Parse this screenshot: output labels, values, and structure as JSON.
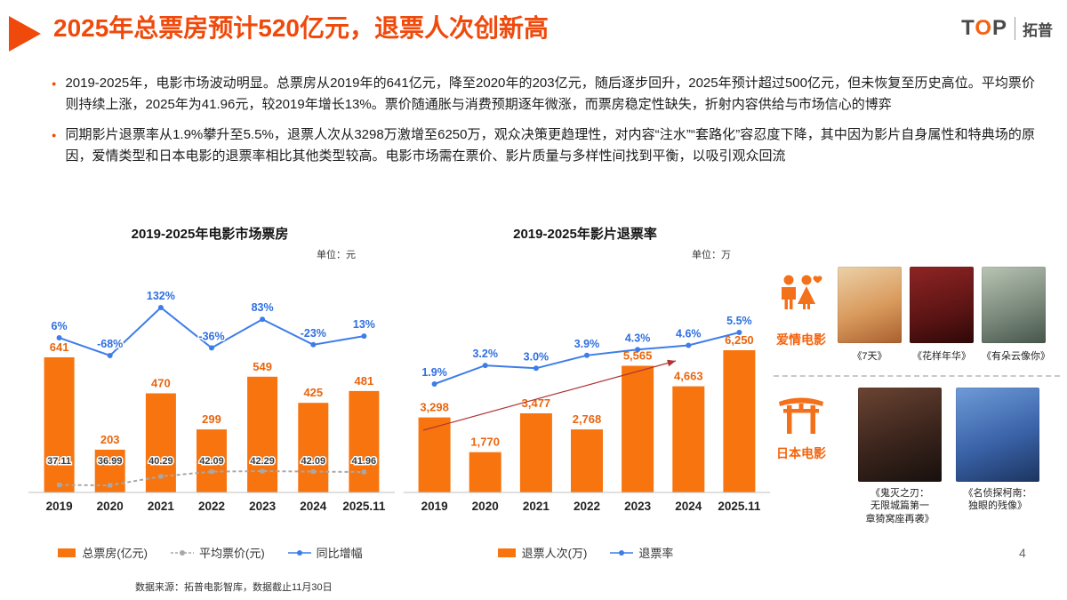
{
  "slide": {
    "title": "2025年总票房预计520亿元，退票人次创新高",
    "logo": {
      "t": "T",
      "o": "O",
      "p": "P",
      "cn": "拓普"
    },
    "page_number": "4",
    "bullets": [
      "2019-2025年，电影市场波动明显。总票房从2019年的641亿元，降至2020年的203亿元，随后逐步回升，2025年预计超过500亿元，但未恢复至历史高位。平均票价则持续上涨，2025年为41.96元，较2019年增长13%。票价随通胀与消费预期逐年微涨，而票房稳定性缺失，折射内容供给与市场信心的博弈",
      "同期影片退票率从1.9%攀升至5.5%，退票人次从3298万激增至6250万，观众决策更趋理性，对内容“注水”“套路化”容忍度下降，其中因为影片自身属性和特典场的原因，爱情类型和日本电影的退票率相比其他类型较高。电影市场需在票价、影片质量与多样性间找到平衡，以吸引观众回流"
    ],
    "footnote": "数据来源：拓普电影智库，数据截止11月30日"
  },
  "chart_data": [
    {
      "type": "bar",
      "title": "2019-2025年电影市场票房",
      "unit": "单位：元",
      "categories": [
        "2019",
        "2020",
        "2021",
        "2022",
        "2023",
        "2024",
        "2025.11"
      ],
      "bar": {
        "name": "总票房(亿元)",
        "color": "#F7740F",
        "values": [
          641,
          203,
          470,
          299,
          549,
          425,
          481
        ],
        "labels": [
          "641",
          "203",
          "470",
          "299",
          "549",
          "425",
          "481"
        ]
      },
      "lines": [
        {
          "name": "平均票价(元)",
          "color": "#A8A8A8",
          "dash": true,
          "values": [
            37.11,
            36.99,
            40.29,
            42.09,
            42.29,
            42.09,
            41.96
          ],
          "labels": [
            "37.11",
            "36.99",
            "40.29",
            "42.09",
            "42.29",
            "42.09",
            "41.96"
          ]
        },
        {
          "name": "同比增幅",
          "color": "#3D7DE8",
          "dash": false,
          "values": [
            6,
            -68,
            132,
            -36,
            83,
            -23,
            13
          ],
          "labels": [
            "6%",
            "-68%",
            "132%",
            "-36%",
            "83%",
            "-23%",
            "13%"
          ]
        }
      ],
      "legend_position": "bottom"
    },
    {
      "type": "bar",
      "title": "2019-2025年影片退票率",
      "unit": "单位：万",
      "categories": [
        "2019",
        "2020",
        "2021",
        "2022",
        "2023",
        "2024",
        "2025.11"
      ],
      "bar": {
        "name": "退票人次(万)",
        "color": "#F7740F",
        "values": [
          3298,
          1770,
          3477,
          2768,
          5565,
          4663,
          6250
        ],
        "labels": [
          "3,298",
          "1,770",
          "3,477",
          "2,768",
          "5,565",
          "4,663",
          "6,250"
        ]
      },
      "lines": [
        {
          "name": "退票率",
          "color": "#3D7DE8",
          "dash": false,
          "values": [
            1.9,
            3.2,
            3.0,
            3.9,
            4.3,
            4.6,
            5.5
          ],
          "labels": [
            "1.9%",
            "3.2%",
            "3.0%",
            "3.9%",
            "4.3%",
            "4.6%",
            "5.5%"
          ]
        }
      ],
      "annotation": "red-trend-arrow",
      "legend_position": "bottom"
    }
  ],
  "side_panel": {
    "romance": {
      "label": "爱情电影",
      "icon": "couple-heart-icon",
      "movies": [
        "《7天》",
        "《花样年华》",
        "《有朵云像你》"
      ]
    },
    "japanese": {
      "label": "日本电影",
      "icon": "torii-gate-icon",
      "movies": [
        "《鬼灭之刃：\n无限城篇第一\n章猗窝座再袭》",
        "《名侦探柯南：\n独眼的残像》"
      ]
    }
  },
  "colors": {
    "title": "#EF4A0C",
    "bar_orange": "#F7740F",
    "line_blue": "#3D7DE8",
    "line_gray": "#A8A8A8",
    "arrow_red": "#B03434"
  }
}
